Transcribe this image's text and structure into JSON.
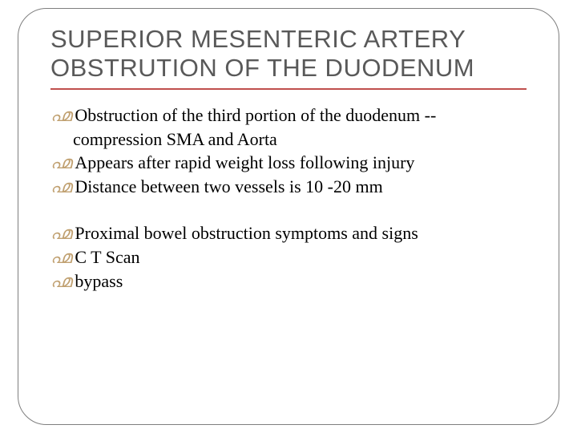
{
  "slide": {
    "title": "SUPERIOR MESENTERIC ARTERY OBSTRUTION OF THE DUODENUM",
    "bullet_glyph": "൶",
    "colors": {
      "title_color": "#595959",
      "underline_color": "#c0504d",
      "bullet_color": "#c0a070",
      "body_color": "#000000",
      "frame_border": "#7f7f7f",
      "background": "#ffffff"
    },
    "typography": {
      "title_font": "Arial",
      "title_size_pt": 24,
      "body_font": "Times New Roman",
      "body_size_pt": 17
    },
    "items_group1": [
      {
        "line": "Obstruction of the third portion of the duodenum --",
        "cont": "compression SMA and Aorta"
      },
      {
        "line": "Appears after rapid weight loss following injury"
      },
      {
        "line": "Distance between two vessels is 10 -20 mm"
      }
    ],
    "items_group2": [
      {
        "line": "Proximal bowel obstruction symptoms and signs"
      },
      {
        "line": "C T Scan"
      },
      {
        "line": "bypass"
      }
    ]
  }
}
